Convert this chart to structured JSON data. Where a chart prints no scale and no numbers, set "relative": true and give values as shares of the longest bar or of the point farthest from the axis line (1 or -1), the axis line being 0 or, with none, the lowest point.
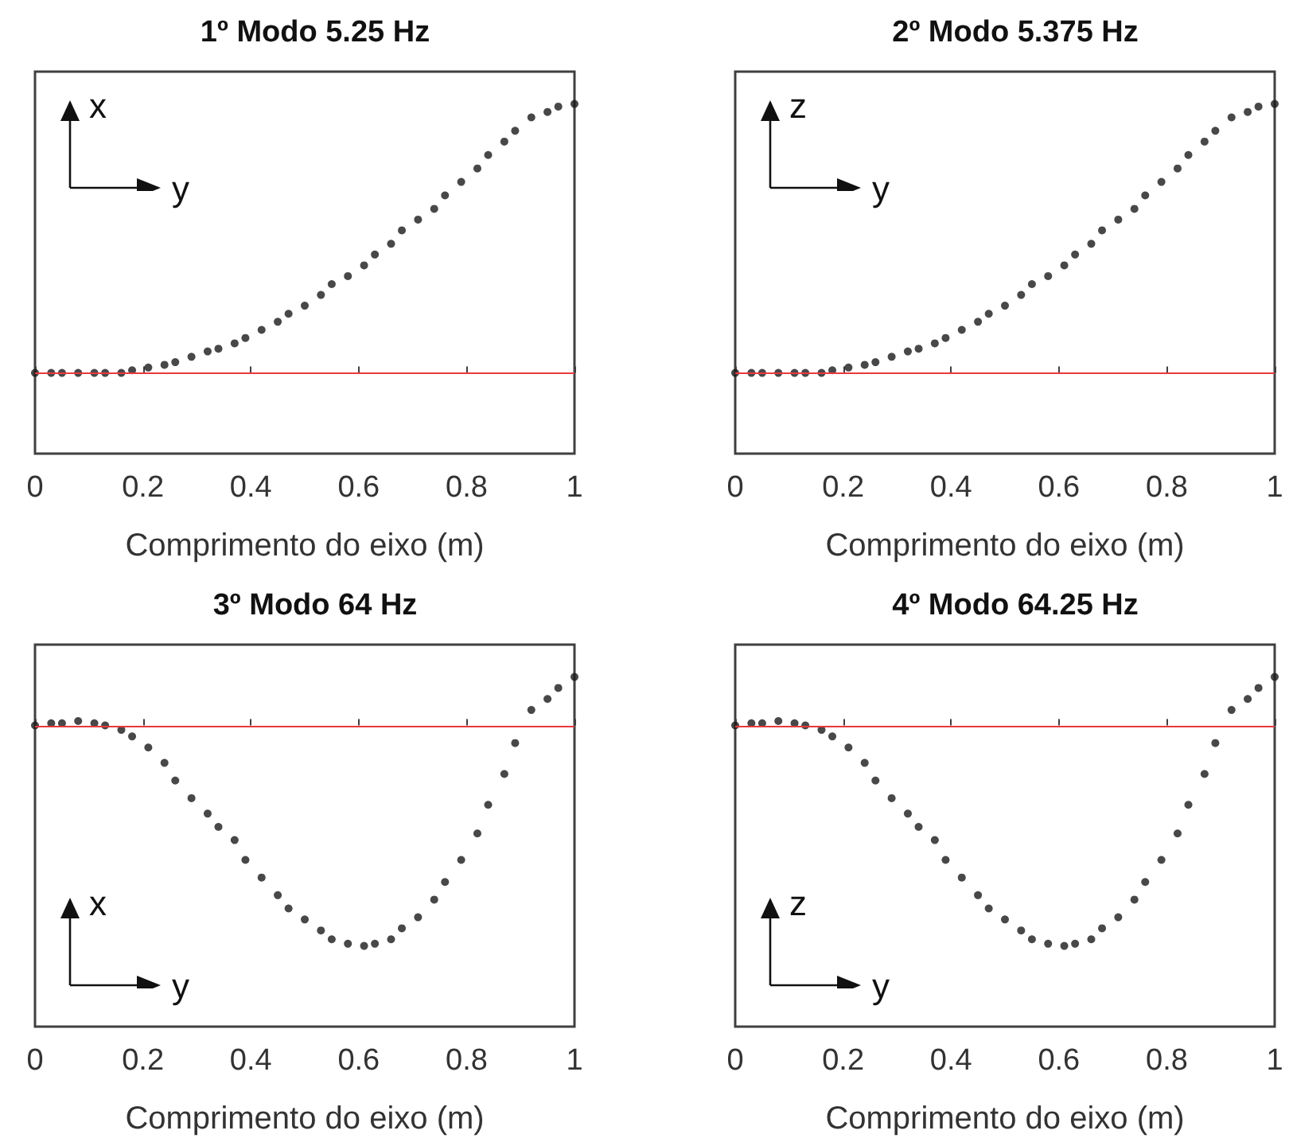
{
  "chart_data": [
    {
      "type": "scatter",
      "title": "1º Modo 5.25 Hz",
      "xlabel": "Comprimento do eixo (m)",
      "relative": true,
      "marker": "circle",
      "annotations": [
        "x",
        "y"
      ],
      "xlim": [
        0,
        1
      ],
      "xticks": [
        0,
        0.2,
        0.4,
        0.6,
        0.8,
        1
      ],
      "ref_lines": [
        {
          "axis": "y",
          "value": 0,
          "color": "#e8383d"
        }
      ],
      "x": [
        0,
        0.03,
        0.05,
        0.08,
        0.11,
        0.13,
        0.16,
        0.18,
        0.21,
        0.24,
        0.26,
        0.29,
        0.32,
        0.34,
        0.37,
        0.39,
        0.42,
        0.45,
        0.47,
        0.5,
        0.53,
        0.55,
        0.58,
        0.61,
        0.63,
        0.66,
        0.68,
        0.71,
        0.74,
        0.76,
        0.79,
        0.82,
        0.84,
        0.87,
        0.89,
        0.92,
        0.95,
        0.97,
        1
      ],
      "series": [
        {
          "color": "#1a1a1a",
          "values": [
            0,
            0,
            0,
            0,
            0,
            0,
            0,
            0.01,
            0.02,
            0.03,
            0.04,
            0.06,
            0.08,
            0.09,
            0.11,
            0.13,
            0.16,
            0.19,
            0.22,
            0.25,
            0.29,
            0.33,
            0.36,
            0.4,
            0.44,
            0.48,
            0.53,
            0.57,
            0.61,
            0.66,
            0.71,
            0.76,
            0.81,
            0.86,
            0.9,
            0.95,
            0.97,
            0.99,
            1
          ]
        }
      ]
    },
    {
      "type": "scatter",
      "title": "2º Modo 5.375 Hz",
      "xlabel": "Comprimento do eixo (m)",
      "relative": true,
      "marker": "circle",
      "annotations": [
        "z",
        "y"
      ],
      "xlim": [
        0,
        1
      ],
      "xticks": [
        0,
        0.2,
        0.4,
        0.6,
        0.8,
        1
      ],
      "ref_lines": [
        {
          "axis": "y",
          "value": 0,
          "color": "#e8383d"
        }
      ],
      "x": [
        0,
        0.03,
        0.05,
        0.08,
        0.11,
        0.13,
        0.16,
        0.18,
        0.21,
        0.24,
        0.26,
        0.29,
        0.32,
        0.34,
        0.37,
        0.39,
        0.42,
        0.45,
        0.47,
        0.5,
        0.53,
        0.55,
        0.58,
        0.61,
        0.63,
        0.66,
        0.68,
        0.71,
        0.74,
        0.76,
        0.79,
        0.82,
        0.84,
        0.87,
        0.89,
        0.92,
        0.95,
        0.97,
        1
      ],
      "series": [
        {
          "color": "#1a1a1a",
          "values": [
            0,
            0,
            0,
            0,
            0,
            0,
            0,
            0.01,
            0.02,
            0.03,
            0.04,
            0.06,
            0.08,
            0.09,
            0.11,
            0.13,
            0.16,
            0.19,
            0.22,
            0.25,
            0.29,
            0.33,
            0.36,
            0.4,
            0.44,
            0.48,
            0.53,
            0.57,
            0.61,
            0.66,
            0.71,
            0.76,
            0.81,
            0.86,
            0.9,
            0.95,
            0.97,
            0.99,
            1
          ]
        }
      ]
    },
    {
      "type": "scatter",
      "title": "3º Modo 64 Hz",
      "xlabel": "Comprimento do eixo (m)",
      "relative": true,
      "marker": "circle",
      "annotations": [
        "x",
        "y"
      ],
      "xlim": [
        0,
        1
      ],
      "xticks": [
        0,
        0.2,
        0.4,
        0.6,
        0.8,
        1
      ],
      "ref_lines": [
        {
          "axis": "y",
          "value": 0,
          "color": "#e8383d"
        }
      ],
      "x": [
        0,
        0.03,
        0.05,
        0.08,
        0.11,
        0.13,
        0.16,
        0.18,
        0.21,
        0.24,
        0.26,
        0.29,
        0.32,
        0.34,
        0.37,
        0.39,
        0.42,
        0.45,
        0.47,
        0.5,
        0.53,
        0.55,
        0.58,
        0.61,
        0.63,
        0.66,
        0.68,
        0.71,
        0.74,
        0.76,
        0.79,
        0.82,
        0.84,
        0.87,
        0.89,
        0.92,
        0.95,
        0.97,
        1
      ],
      "series": [
        {
          "color": "#1a1a1a",
          "values": [
            0,
            0.01,
            0.01,
            0.02,
            0.01,
            0,
            -0.02,
            -0.05,
            -0.1,
            -0.17,
            -0.25,
            -0.33,
            -0.4,
            -0.46,
            -0.52,
            -0.61,
            -0.69,
            -0.77,
            -0.83,
            -0.88,
            -0.93,
            -0.97,
            -0.99,
            -1,
            -0.99,
            -0.97,
            -0.92,
            -0.87,
            -0.79,
            -0.71,
            -0.61,
            -0.49,
            -0.36,
            -0.22,
            -0.08,
            0.07,
            0.12,
            0.17,
            0.22
          ]
        }
      ]
    },
    {
      "type": "scatter",
      "title": "4º Modo 64.25 Hz",
      "xlabel": "Comprimento do eixo (m)",
      "relative": true,
      "marker": "circle",
      "annotations": [
        "z",
        "y"
      ],
      "xlim": [
        0,
        1
      ],
      "xticks": [
        0,
        0.2,
        0.4,
        0.6,
        0.8,
        1
      ],
      "ref_lines": [
        {
          "axis": "y",
          "value": 0,
          "color": "#e8383d"
        }
      ],
      "x": [
        0,
        0.03,
        0.05,
        0.08,
        0.11,
        0.13,
        0.16,
        0.18,
        0.21,
        0.24,
        0.26,
        0.29,
        0.32,
        0.34,
        0.37,
        0.39,
        0.42,
        0.45,
        0.47,
        0.5,
        0.53,
        0.55,
        0.58,
        0.61,
        0.63,
        0.66,
        0.68,
        0.71,
        0.74,
        0.76,
        0.79,
        0.82,
        0.84,
        0.87,
        0.89,
        0.92,
        0.95,
        0.97,
        1
      ],
      "series": [
        {
          "color": "#1a1a1a",
          "values": [
            0,
            0.01,
            0.01,
            0.02,
            0.01,
            0,
            -0.02,
            -0.05,
            -0.1,
            -0.17,
            -0.25,
            -0.33,
            -0.4,
            -0.46,
            -0.52,
            -0.61,
            -0.69,
            -0.77,
            -0.83,
            -0.88,
            -0.93,
            -0.97,
            -0.99,
            -1,
            -0.99,
            -0.97,
            -0.92,
            -0.87,
            -0.79,
            -0.71,
            -0.61,
            -0.49,
            -0.36,
            -0.22,
            -0.08,
            0.07,
            0.12,
            0.17,
            0.22
          ]
        }
      ]
    }
  ]
}
